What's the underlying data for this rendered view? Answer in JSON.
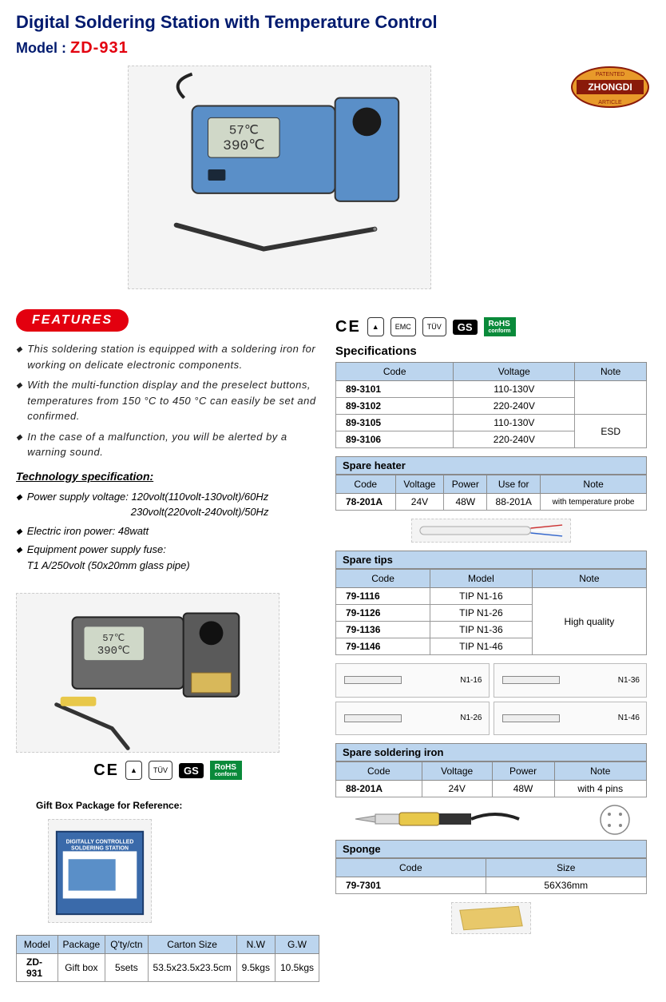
{
  "header": {
    "title": "Digital Soldering Station with Temperature Control",
    "model_label": "Model : ",
    "model_code": "ZD-931",
    "logo_text": "ZHONGDI",
    "logo_top": "PATENTED",
    "logo_bottom": "ARTICLE"
  },
  "features": {
    "badge": "FEATURES",
    "items": [
      "This soldering station is equipped with a soldering iron for working on delicate electronic components.",
      "With the multi-function display and the preselect buttons, temperatures from 150 °C to 450 °C can easily be set and confirmed.",
      "In the case of a malfunction, you will be alerted by a warning sound."
    ],
    "tech_title": "Technology specification:",
    "tech_items": [
      "Power supply voltage: 120volt(110volt-130volt)/60Hz\n                                    230volt(220volt-240volt)/50Hz",
      "Electric iron power: 48watt",
      "Equipment power supply fuse:\nT1 A/250volt (50x20mm glass pipe)"
    ]
  },
  "gift": {
    "title": "Gift Box Package for Reference:"
  },
  "package_table": {
    "headers": [
      "Model",
      "Package",
      "Q'ty/ctn",
      "Carton Size",
      "N.W",
      "G.W"
    ],
    "row": [
      "ZD-931",
      "Gift box",
      "5sets",
      "53.5x23.5x23.5cm",
      "9.5kgs",
      "10.5kgs"
    ]
  },
  "specs": {
    "title": "Specifications",
    "headers": [
      "Code",
      "Voltage",
      "Note"
    ],
    "rows": [
      {
        "code": "89-3101",
        "voltage": "110-130V",
        "note": ""
      },
      {
        "code": "89-3102",
        "voltage": "220-240V",
        "note": ""
      },
      {
        "code": "89-3105",
        "voltage": "110-130V",
        "note": "ESD"
      },
      {
        "code": "89-3106",
        "voltage": "220-240V",
        "note": ""
      }
    ],
    "esd_note": "ESD"
  },
  "spare_heater": {
    "title": "Spare heater",
    "headers": [
      "Code",
      "Voltage",
      "Power",
      "Use for",
      "Note"
    ],
    "row": {
      "code": "78-201A",
      "voltage": "24V",
      "power": "48W",
      "usefor": "88-201A",
      "note": "with temperature probe"
    }
  },
  "spare_tips": {
    "title": "Spare tips",
    "headers": [
      "Code",
      "Model",
      "Note"
    ],
    "rows": [
      {
        "code": "79-1116",
        "model": "TIP N1-16"
      },
      {
        "code": "79-1126",
        "model": "TIP N1-26"
      },
      {
        "code": "79-1136",
        "model": "TIP N1-36"
      },
      {
        "code": "79-1146",
        "model": "TIP N1-46"
      }
    ],
    "note": "High quality",
    "diagrams": [
      "N1-16",
      "N1-36",
      "N1-26",
      "N1-46"
    ]
  },
  "spare_iron": {
    "title": "Spare soldering iron",
    "headers": [
      "Code",
      "Voltage",
      "Power",
      "Note"
    ],
    "row": {
      "code": "88-201A",
      "voltage": "24V",
      "power": "48W",
      "note": "with 4 pins"
    }
  },
  "sponge": {
    "title": "Sponge",
    "headers": [
      "Code",
      "Size"
    ],
    "row": {
      "code": "79-7301",
      "size": "56X36mm"
    }
  },
  "cert": {
    "ce": "CE",
    "rohs": "RoHS",
    "rohs_sub": "conform",
    "gs": "GS"
  },
  "colors": {
    "navy": "#001a6e",
    "red": "#e3000f",
    "table_header": "#bcd5ee",
    "rohs_green": "#0a8a3a"
  }
}
